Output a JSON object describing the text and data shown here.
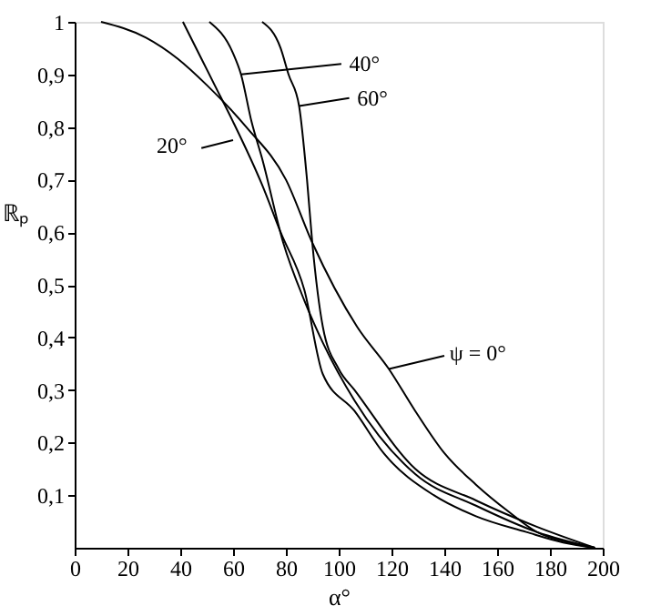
{
  "chart_data": {
    "type": "line",
    "xlabel": "α°",
    "ylabel": "ℝₚ",
    "xlim": [
      0,
      200
    ],
    "xticks": [
      0,
      20,
      40,
      60,
      80,
      100,
      120,
      140,
      160,
      180,
      200
    ],
    "ylim": [
      0,
      1
    ],
    "yticks": [
      {
        "value": 0.1,
        "label": "0,1"
      },
      {
        "value": 0.2,
        "label": "0,2"
      },
      {
        "value": 0.3,
        "label": "0,3"
      },
      {
        "value": 0.4,
        "label": "0,4"
      },
      {
        "value": 0.5,
        "label": "0,5"
      },
      {
        "value": 0.6,
        "label": "0,6"
      },
      {
        "value": 0.7,
        "label": "0,7"
      },
      {
        "value": 0.8,
        "label": "0,8"
      },
      {
        "value": 0.9,
        "label": "0,9"
      },
      {
        "value": 1,
        "label": "1"
      }
    ],
    "grid": false,
    "legend": "top right",
    "marker": "none",
    "line_style": "solid",
    "series": [
      {
        "name": "ψ = 0°",
        "color": "#000000",
        "x": [
          10,
          27,
          39,
          50,
          65,
          80,
          90,
          107,
          119,
          129,
          140,
          152,
          164,
          175,
          187,
          197
        ],
        "values": [
          1,
          0.97,
          0.93,
          0.88,
          0.8,
          0.7,
          0.58,
          0.42,
          0.34,
          0.26,
          0.18,
          0.12,
          0.07,
          0.03,
          0.01,
          0
        ]
      },
      {
        "name": "20°",
        "color": "#000000",
        "x": [
          41,
          48,
          53,
          60,
          71,
          78,
          87,
          94,
          106,
          117,
          136,
          152,
          171,
          185,
          197
        ],
        "values": [
          1,
          0.93,
          0.88,
          0.81,
          0.69,
          0.6,
          0.49,
          0.33,
          0.26,
          0.18,
          0.1,
          0.06,
          0.03,
          0.01,
          0
        ]
      },
      {
        "name": "40°",
        "color": "#000000",
        "x": [
          51,
          60,
          63,
          67,
          71,
          79,
          87,
          94,
          106,
          129,
          152,
          175,
          197
        ],
        "values": [
          1,
          0.94,
          0.9,
          0.81,
          0.74,
          0.58,
          0.47,
          0.39,
          0.28,
          0.14,
          0.08,
          0.03,
          0
        ]
      },
      {
        "name": "60°",
        "color": "#000000",
        "x": [
          71,
          78,
          81,
          85,
          88,
          90,
          94,
          100,
          106,
          129,
          152,
          175,
          197
        ],
        "values": [
          1,
          0.95,
          0.9,
          0.84,
          0.7,
          0.58,
          0.42,
          0.34,
          0.3,
          0.15,
          0.09,
          0.04,
          0
        ]
      }
    ]
  }
}
